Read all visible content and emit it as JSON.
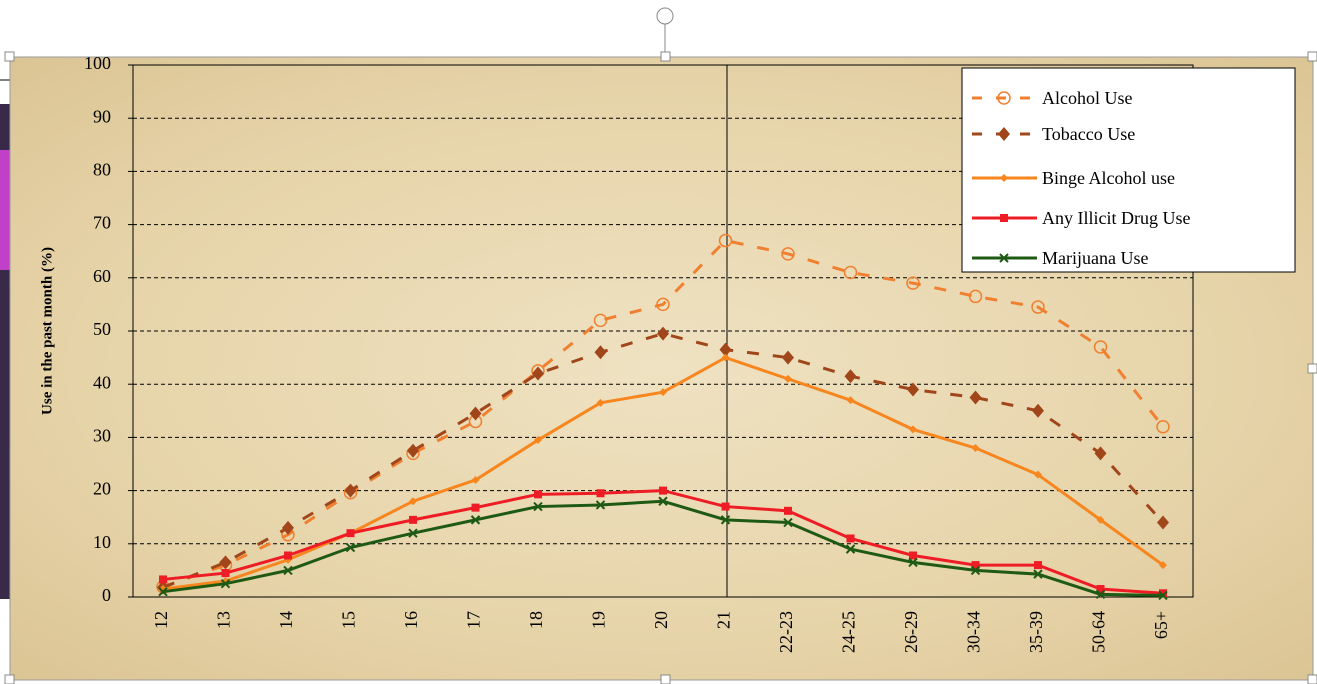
{
  "chart_data": {
    "type": "line",
    "y_label": "Use in the past month (%)",
    "categories": [
      "12",
      "13",
      "14",
      "15",
      "16",
      "17",
      "18",
      "19",
      "20",
      "21",
      "22-23",
      "24-25",
      "26-29",
      "30-34",
      "35-39",
      "50-64",
      "65+"
    ],
    "series": [
      {
        "name": "Alcohol Use",
        "color": "#f08030",
        "dash": true,
        "marker": "circle",
        "values": [
          1.9,
          6,
          11.7,
          19.6,
          27,
          33,
          42.5,
          52,
          55,
          67,
          64.5,
          61,
          59,
          56.5,
          54.5,
          47,
          32
        ]
      },
      {
        "name": "Tobacco Use",
        "color": "#a0461a",
        "dash": true,
        "marker": "diamond",
        "values": [
          1.8,
          6.5,
          13,
          20,
          27.5,
          34.5,
          42,
          46,
          49.5,
          46.5,
          45,
          41.5,
          39,
          37.5,
          35,
          27,
          14
        ]
      },
      {
        "name": "Binge Alcohol use",
        "color": "#f7861e",
        "dash": false,
        "marker": "dot",
        "values": [
          1.5,
          3,
          7,
          12,
          18,
          22,
          29.5,
          36.5,
          38.5,
          45,
          41,
          37,
          31.5,
          28,
          23,
          14.5,
          6
        ]
      },
      {
        "name": "Any Illicit Drug Use",
        "color": "#ee1c24",
        "dash": false,
        "marker": "square",
        "values": [
          3.3,
          4.5,
          7.8,
          12,
          14.5,
          16.8,
          19.3,
          19.5,
          20,
          17,
          16.2,
          11,
          7.8,
          6,
          6,
          1.5,
          0.7
        ]
      },
      {
        "name": "Marijuana Use",
        "color": "#1e5a14",
        "dash": false,
        "marker": "x",
        "values": [
          1,
          2.5,
          5,
          9.3,
          12,
          14.5,
          17,
          17.3,
          18,
          14.5,
          14,
          9,
          6.5,
          5,
          4.3,
          0.5,
          0.3
        ]
      }
    ],
    "ylim": [
      0,
      100
    ],
    "yticks": [
      0,
      10,
      20,
      30,
      40,
      50,
      60,
      70,
      80,
      90,
      100
    ],
    "grid": true,
    "legend": "top-right"
  }
}
